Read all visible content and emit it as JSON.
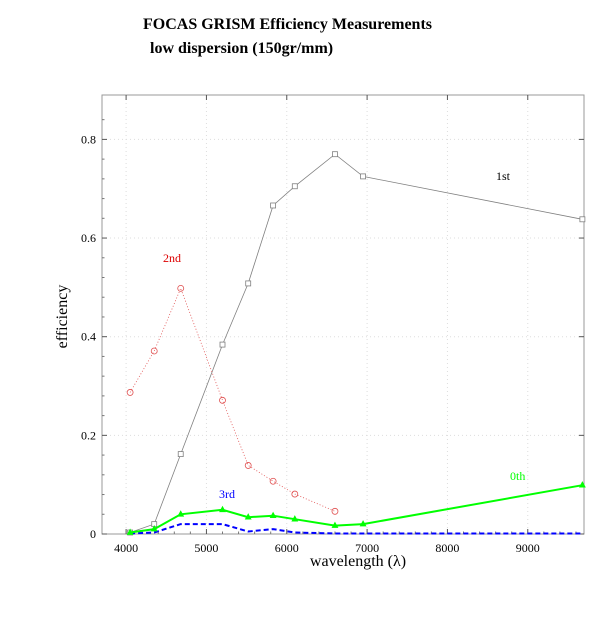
{
  "chart_data": {
    "type": "line",
    "title": "FOCAS  GRISM  Efficiency  Measurements",
    "subtitle": "low  dispersion  (150gr/mm)",
    "xlabel": "wavelength  (λ)",
    "ylabel": "efficiency",
    "xlim": [
      3700,
      9700
    ],
    "ylim": [
      0,
      0.89
    ],
    "x_ticks": [
      4000,
      5000,
      6000,
      7000,
      8000,
      9000
    ],
    "y_ticks": [
      0,
      0.2,
      0.4,
      0.6,
      0.8
    ],
    "x_tick_labels": [
      "4000",
      "5000",
      "6000",
      "7000",
      "8000",
      "9000"
    ],
    "y_tick_labels": [
      "0",
      "0.2",
      "0.4",
      "0.6",
      "0.8"
    ],
    "grid": true,
    "series": [
      {
        "name": "1st",
        "color": "#808080",
        "line": "solid",
        "marker": "square",
        "x": [
          4050,
          4350,
          4680,
          5200,
          5520,
          5830,
          6100,
          6600,
          6950,
          9680
        ],
        "y": [
          0.003,
          0.02,
          0.162,
          0.384,
          0.508,
          0.666,
          0.705,
          0.77,
          0.725,
          0.638
        ]
      },
      {
        "name": "2nd",
        "color": "#e05050",
        "line": "dotted",
        "marker": "circle",
        "x": [
          4050,
          4350,
          4680,
          5200,
          5520,
          5830,
          6100,
          6600
        ],
        "y": [
          0.287,
          0.371,
          0.498,
          0.271,
          0.139,
          0.107,
          0.081,
          0.046
        ]
      },
      {
        "name": "3rd",
        "color": "#0000ff",
        "line": "dashed",
        "marker": "none",
        "x": [
          4050,
          4350,
          4680,
          5200,
          5520,
          5830,
          6100,
          6600,
          6950,
          9680
        ],
        "y": [
          0.001,
          0.003,
          0.02,
          0.02,
          0.005,
          0.01,
          0.003,
          0.001,
          0.001,
          0.001
        ]
      },
      {
        "name": "0th",
        "color": "#00ff00",
        "line": "solid",
        "marker": "triangle",
        "x": [
          4050,
          4350,
          4680,
          5200,
          5520,
          5830,
          6100,
          6600,
          6950,
          9680
        ],
        "y": [
          0.003,
          0.01,
          0.04,
          0.049,
          0.034,
          0.037,
          0.03,
          0.017,
          0.02,
          0.099
        ]
      }
    ]
  }
}
